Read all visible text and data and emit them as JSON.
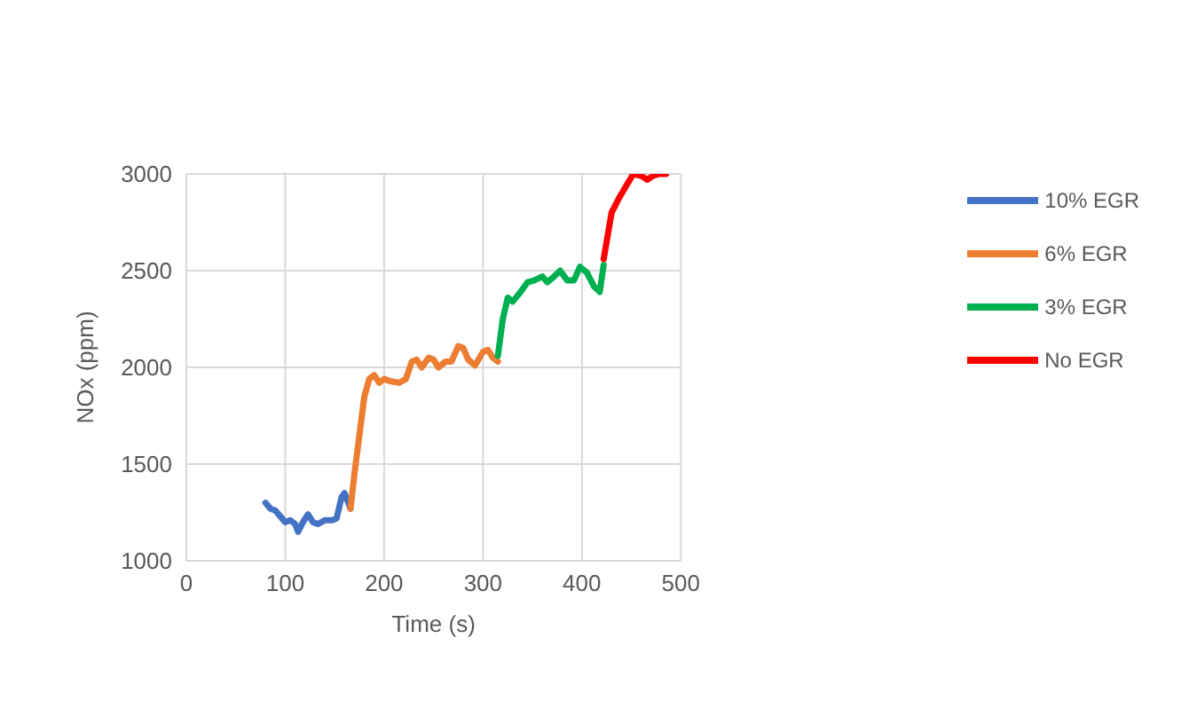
{
  "chart_data": {
    "type": "line",
    "xlabel": "Time (s)",
    "ylabel": "NOx (ppm)",
    "xlim": [
      0,
      500
    ],
    "xticks": [
      0,
      100,
      200,
      300,
      400,
      500
    ],
    "ylim": [
      1000,
      3000
    ],
    "yticks": [
      1000,
      1500,
      2000,
      2500,
      3000
    ],
    "grid": true,
    "legend": "right",
    "marker": "none",
    "line_style": "solid",
    "series": [
      {
        "name": "10% EGR",
        "color": "#4472c4",
        "x": [
          80,
          85,
          90,
          95,
          100,
          105,
          110,
          113,
          118,
          123,
          128,
          133,
          140,
          148,
          152,
          157,
          160,
          163,
          166
        ],
        "values": [
          1300,
          1270,
          1260,
          1230,
          1200,
          1210,
          1190,
          1150,
          1200,
          1240,
          1200,
          1190,
          1210,
          1210,
          1220,
          1330,
          1350,
          1310,
          1270
        ]
      },
      {
        "name": "6% EGR",
        "color": "#ed7d31",
        "x": [
          166,
          170,
          175,
          180,
          185,
          190,
          195,
          200,
          205,
          215,
          222,
          228,
          233,
          238,
          245,
          250,
          255,
          262,
          268,
          275,
          280,
          285,
          292,
          300,
          305,
          310,
          315
        ],
        "values": [
          1270,
          1450,
          1650,
          1850,
          1940,
          1960,
          1920,
          1940,
          1930,
          1920,
          1940,
          2030,
          2040,
          2000,
          2050,
          2040,
          2000,
          2030,
          2030,
          2110,
          2100,
          2040,
          2010,
          2080,
          2090,
          2050,
          2030
        ]
      },
      {
        "name": "3% EGR",
        "color": "#00b050",
        "x": [
          315,
          320,
          325,
          330,
          338,
          345,
          352,
          360,
          365,
          372,
          378,
          385,
          392,
          398,
          405,
          412,
          418,
          422
        ],
        "values": [
          2060,
          2250,
          2360,
          2340,
          2390,
          2440,
          2450,
          2470,
          2440,
          2470,
          2500,
          2450,
          2450,
          2520,
          2490,
          2420,
          2390,
          2530
        ]
      },
      {
        "name": "No EGR",
        "color": "#ff0000",
        "x": [
          422,
          426,
          430,
          437,
          445,
          452,
          460,
          466,
          472,
          478,
          485
        ],
        "values": [
          2560,
          2680,
          2800,
          2870,
          2940,
          3000,
          2990,
          2970,
          2990,
          3000,
          3000
        ]
      }
    ]
  }
}
